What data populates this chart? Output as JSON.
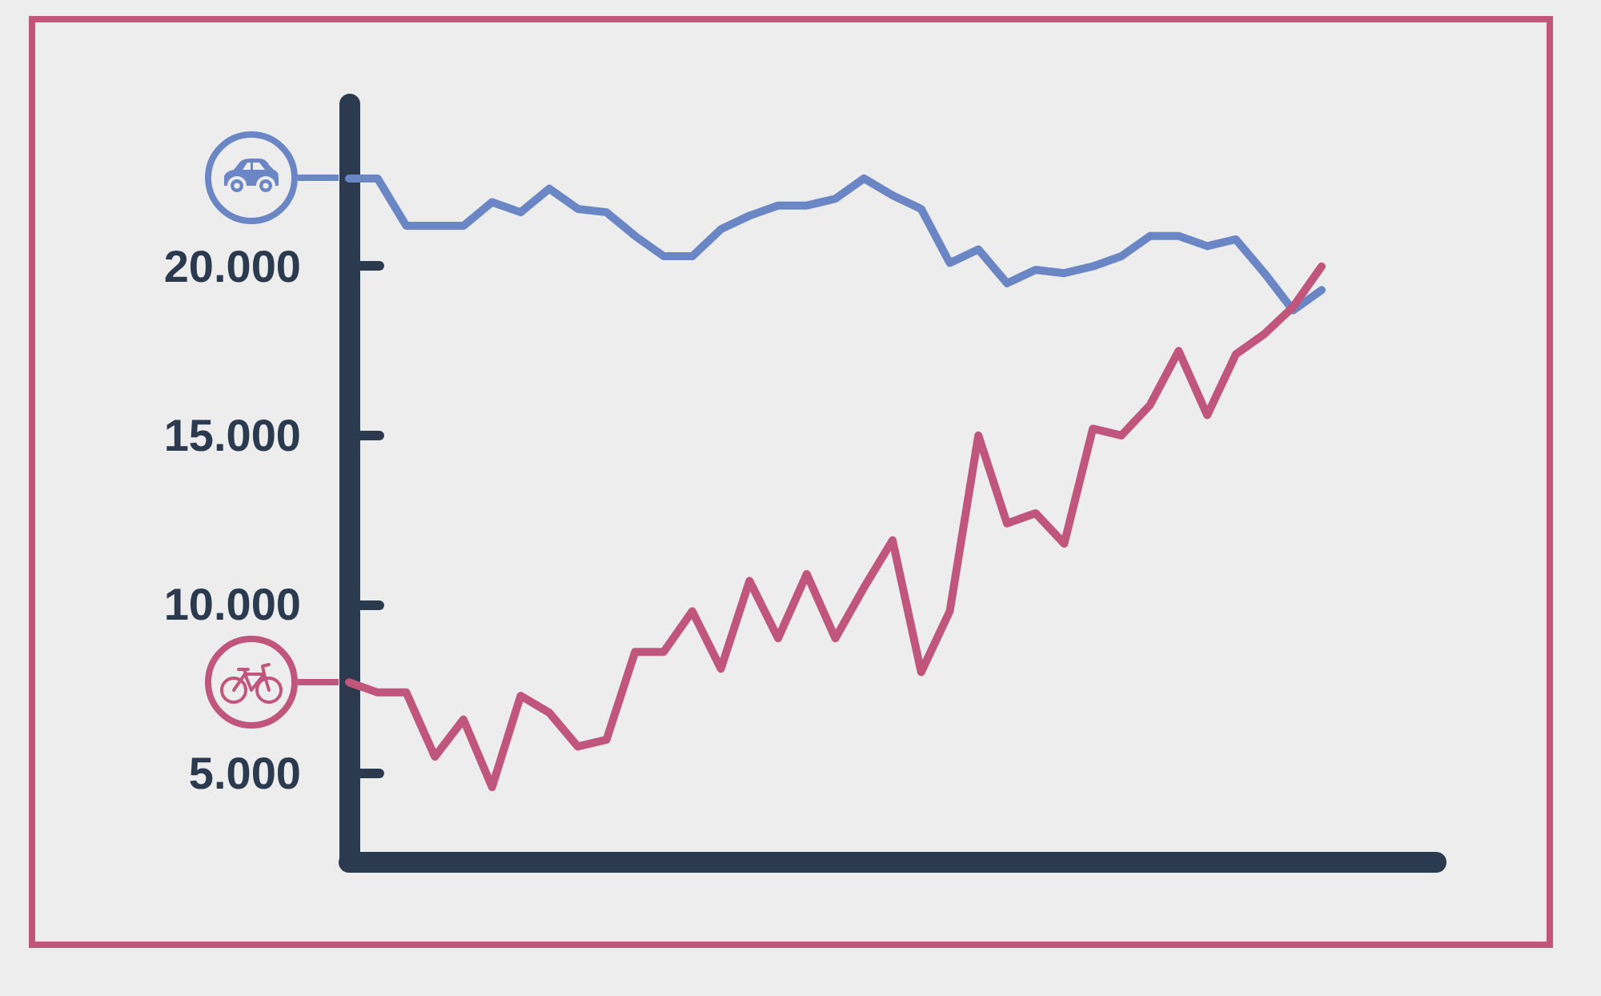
{
  "chart_data": {
    "type": "line",
    "categories": [
      null,
      null,
      null,
      null,
      null,
      null,
      null,
      null,
      null,
      null,
      null,
      null,
      null,
      null,
      null,
      null,
      null,
      null,
      null,
      null,
      null,
      null,
      null,
      null,
      null,
      null,
      null,
      null,
      null,
      null,
      null,
      null,
      null,
      null,
      null
    ],
    "series": [
      {
        "color": "#6a86c4",
        "values": [
          22600,
          22600,
          21200,
          21200,
          21200,
          21900,
          21600,
          22300,
          21700,
          21600,
          20900,
          20300,
          20300,
          21100,
          21500,
          21800,
          21800,
          22000,
          22600,
          22100,
          21700,
          20100,
          20500,
          19500,
          19900,
          19800,
          20000,
          20300,
          20900,
          20900,
          20600,
          20800,
          19800,
          18700,
          19300
        ]
      },
      {
        "color": "#c0567b",
        "values": [
          7700,
          7400,
          7400,
          5500,
          6600,
          4600,
          7300,
          6800,
          5800,
          6000,
          8600,
          8600,
          9800,
          8100,
          10700,
          9000,
          10900,
          9000,
          10500,
          11900,
          8000,
          9800,
          15000,
          12400,
          12700,
          11800,
          15200,
          15000,
          15900,
          17500,
          15600,
          17400,
          18000,
          18800,
          20000
        ]
      }
    ],
    "ylim": [
      2400,
      24800
    ],
    "yticks": [
      {
        "value": 5000,
        "label": "5.000"
      },
      {
        "value": 10000,
        "label": "10.000"
      },
      {
        "value": 15000,
        "label": "15.000"
      },
      {
        "value": 20000,
        "label": "20.000"
      }
    ],
    "tick_labels": "y",
    "marker": "none",
    "line_style": "solid"
  }
}
